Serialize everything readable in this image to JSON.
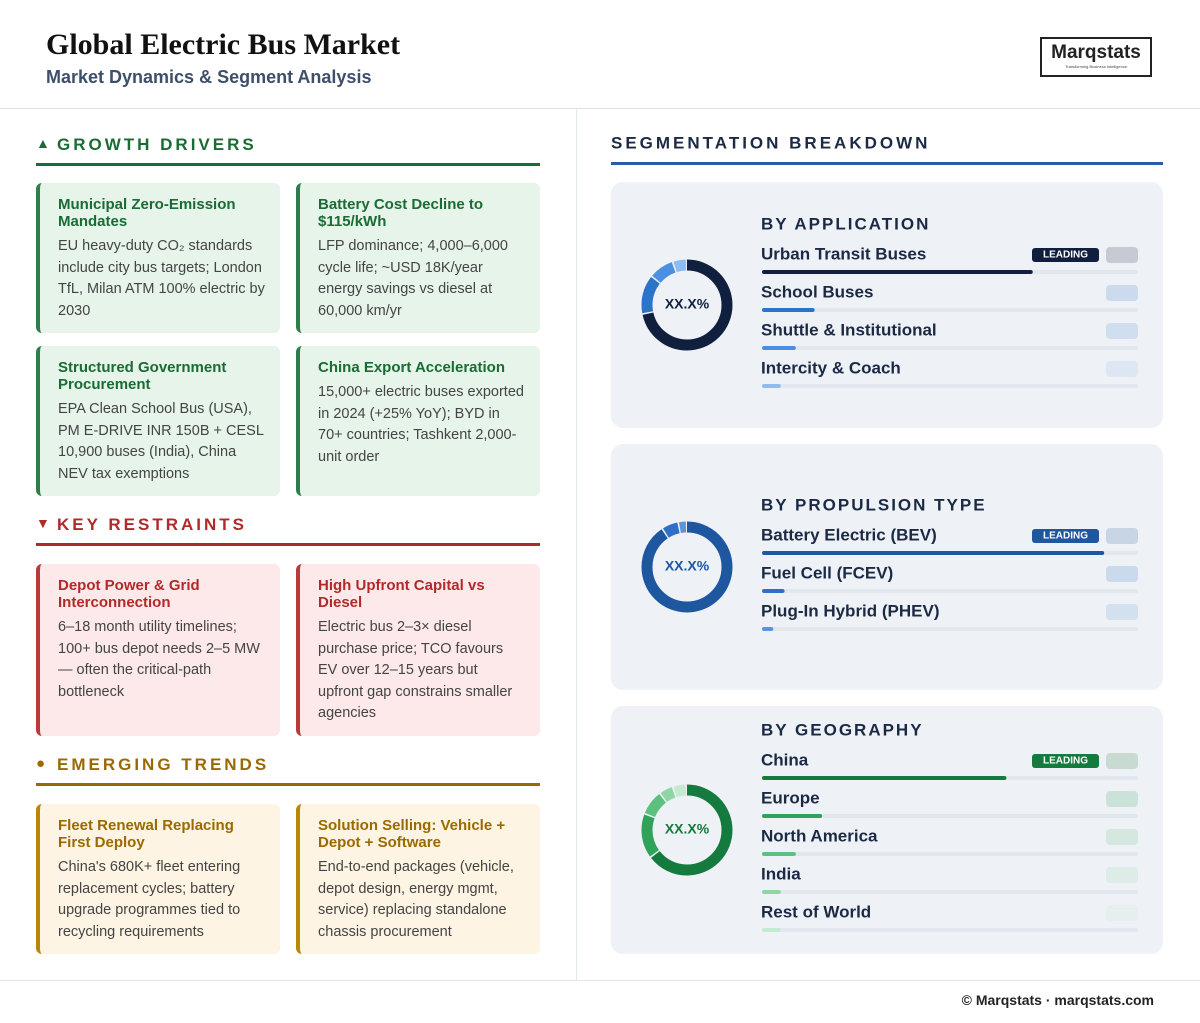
{
  "header": {
    "title": "Global Electric Bus Market",
    "subtitle": "Market Dynamics & Segment Analysis",
    "logo": {
      "name": "Marqstats",
      "tagline": "Transforming Business Intelligence"
    }
  },
  "sections": [
    {
      "icon": "▲",
      "title": "GROWTH DRIVERS",
      "theme": "green",
      "cards": [
        {
          "title": "Municipal Zero-Emission Mandates",
          "body": "EU heavy-duty CO₂ standards include city bus targets; London TfL, Milan ATM 100% electric by 2030"
        },
        {
          "title": "Battery Cost Decline to $115/kWh",
          "body": "LFP dominance; 4,000–6,000 cycle life; ~USD 18K/year energy savings vs diesel at 60,000 km/yr"
        },
        {
          "title": "Structured Government Procurement",
          "body": "EPA Clean School Bus (USA), PM E-DRIVE INR 150B + CESL 10,900 buses (India), China NEV tax exemptions"
        },
        {
          "title": "China Export Acceleration",
          "body": "15,000+ electric buses exported in 2024 (+25% YoY); BYD in 70+ countries; Tashkent 2,000-unit order"
        }
      ]
    },
    {
      "icon": "▼",
      "title": "KEY RESTRAINTS",
      "theme": "red",
      "cards": [
        {
          "title": "Depot Power & Grid Interconnection",
          "body": "6–18 month utility timelines; 100+ bus depot needs 2–5 MW — often the critical-path bottleneck"
        },
        {
          "title": "High Upfront Capital vs Diesel",
          "body": "Electric bus 2–3× diesel purchase price; TCO favours EV over 12–15 years but upfront gap constrains smaller agencies"
        }
      ]
    },
    {
      "icon": "●",
      "title": "EMERGING TRENDS",
      "theme": "amber",
      "cards": [
        {
          "title": "Fleet Renewal Replacing First Deploy",
          "body": "China's 680K+ fleet entering replacement cycles; battery upgrade programmes tied to recycling requirements"
        },
        {
          "title": "Solution Selling: Vehicle + Depot + Software",
          "body": "End-to-end packages (vehicle, depot design, energy mgmt, service) replacing standalone chassis procurement"
        }
      ]
    }
  ],
  "segmentation": {
    "title": "SEGMENTATION BREAKDOWN",
    "center_label": "XX.X%",
    "badge": "LEADING",
    "panels": [
      {
        "title": "BY APPLICATION",
        "colors": [
          "#0f1f3d",
          "#2a74c9",
          "#4a8fe0",
          "#8dbdf0"
        ],
        "items": [
          {
            "name": "Urban Transit Buses",
            "value": 72
          },
          {
            "name": "School Buses",
            "value": 14
          },
          {
            "name": "Shuttle & Institutional",
            "value": 9
          },
          {
            "name": "Intercity & Coach",
            "value": 5
          }
        ]
      },
      {
        "title": "BY PROPULSION TYPE",
        "colors": [
          "#1e56a0",
          "#2f6fc6",
          "#5b94dd"
        ],
        "items": [
          {
            "name": "Battery Electric (BEV)",
            "value": 91
          },
          {
            "name": "Fuel Cell (FCEV)",
            "value": 6
          },
          {
            "name": "Plug-In Hybrid (PHEV)",
            "value": 3
          }
        ]
      },
      {
        "title": "BY GEOGRAPHY",
        "colors": [
          "#157a3e",
          "#2fa35a",
          "#5cc07f",
          "#8fd6a5",
          "#c4ebd0"
        ],
        "items": [
          {
            "name": "China",
            "value": 65
          },
          {
            "name": "Europe",
            "value": 16
          },
          {
            "name": "North America",
            "value": 9
          },
          {
            "name": "India",
            "value": 5
          },
          {
            "name": "Rest of World",
            "value": 5
          }
        ]
      }
    ]
  },
  "footer": "© Marqstats · marqstats.com"
}
